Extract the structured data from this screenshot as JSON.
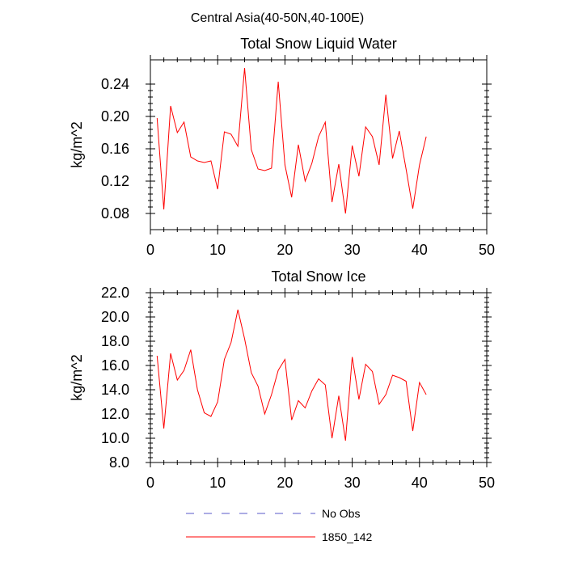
{
  "figure": {
    "suptitle": "Central Asia(40-50N,40-100E)"
  },
  "colors": {
    "model_line": "#ff0000",
    "obs_line": "#5a5ac8",
    "axis": "#000000"
  },
  "legend": {
    "placement": "bottom",
    "entries": [
      {
        "label": "No Obs",
        "style": "dashed",
        "color": "#5a5ac8"
      },
      {
        "label": "1850_142",
        "style": "solid",
        "color": "#ff0000"
      }
    ]
  },
  "chart_data": [
    {
      "type": "line",
      "title": "Total Snow Liquid Water",
      "xlabel": "",
      "ylabel": "kg/m^2",
      "xlim": [
        0,
        50
      ],
      "ylim": [
        0.06,
        0.27
      ],
      "xticks": [
        0,
        10,
        20,
        30,
        40,
        50
      ],
      "yticks": [
        0.08,
        0.12,
        0.16,
        0.2,
        0.24
      ],
      "ytick_labels": [
        "0.08",
        "0.12",
        "0.16",
        "0.20",
        "0.24"
      ],
      "grid": false,
      "series": [
        {
          "name": "1850_142",
          "x": [
            1,
            2,
            3,
            4,
            5,
            6,
            7,
            8,
            9,
            10,
            11,
            12,
            13,
            14,
            15,
            16,
            17,
            18,
            19,
            20,
            21,
            22,
            23,
            24,
            25,
            26,
            27,
            28,
            29,
            30,
            31,
            32,
            33,
            34,
            35,
            36,
            37,
            38,
            39,
            40,
            41
          ],
          "y": [
            0.198,
            0.085,
            0.213,
            0.18,
            0.193,
            0.15,
            0.145,
            0.143,
            0.145,
            0.11,
            0.181,
            0.178,
            0.163,
            0.26,
            0.159,
            0.135,
            0.133,
            0.136,
            0.243,
            0.14,
            0.1,
            0.165,
            0.12,
            0.142,
            0.175,
            0.193,
            0.094,
            0.141,
            0.08,
            0.164,
            0.126,
            0.187,
            0.175,
            0.14,
            0.227,
            0.148,
            0.182,
            0.135,
            0.086,
            0.14,
            0.175
          ]
        }
      ]
    },
    {
      "type": "line",
      "title": "Total Snow Ice",
      "xlabel": "",
      "ylabel": "kg/m^2",
      "xlim": [
        0,
        50
      ],
      "ylim": [
        8.0,
        22.0
      ],
      "xticks": [
        0,
        10,
        20,
        30,
        40,
        50
      ],
      "yticks": [
        8,
        10,
        12,
        14,
        16,
        18,
        20,
        22
      ],
      "ytick_labels": [
        "8.0",
        "10.0",
        "12.0",
        "14.0",
        "16.0",
        "18.0",
        "20.0",
        "22.0"
      ],
      "grid": false,
      "series": [
        {
          "name": "1850_142",
          "x": [
            1,
            2,
            3,
            4,
            5,
            6,
            7,
            8,
            9,
            10,
            11,
            12,
            13,
            14,
            15,
            16,
            17,
            18,
            19,
            20,
            21,
            22,
            23,
            24,
            25,
            26,
            27,
            28,
            29,
            30,
            31,
            32,
            33,
            34,
            35,
            36,
            37,
            38,
            39,
            40,
            41
          ],
          "y": [
            16.8,
            10.8,
            17.0,
            14.8,
            15.6,
            17.3,
            14.0,
            12.1,
            11.8,
            13.0,
            16.5,
            17.9,
            20.6,
            18.2,
            15.4,
            14.3,
            12.0,
            13.6,
            15.6,
            16.5,
            11.5,
            13.1,
            12.5,
            13.9,
            14.9,
            14.4,
            10.0,
            13.5,
            9.8,
            16.7,
            13.2,
            16.1,
            15.5,
            12.8,
            13.6,
            15.2,
            15.0,
            14.7,
            10.6,
            14.6,
            13.6
          ]
        }
      ]
    }
  ]
}
